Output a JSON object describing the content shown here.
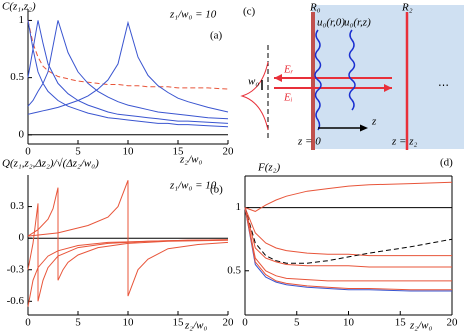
{
  "chart_data": [
    {
      "type": "line",
      "panel_label": "(a)",
      "ylabel": "C(z₁,z₂)",
      "xlabel": "z₂/w₀",
      "annotation": "z₁/w₀ = 10",
      "x": [
        0,
        0.5,
        1,
        1.5,
        2,
        3,
        4,
        5,
        6,
        7,
        8,
        9,
        10,
        11,
        12,
        13,
        14,
        15,
        16,
        18,
        20
      ],
      "series": [
        {
          "color": "#000000",
          "x": [
            0,
            20
          ],
          "values": [
            0,
            0
          ]
        },
        {
          "color": "#e8553a",
          "dash": true,
          "values": [
            1,
            0.8,
            0.68,
            0.6,
            0.56,
            0.51,
            0.49,
            0.47,
            0.46,
            0.45,
            0.44,
            0.44,
            0.43,
            0.43,
            0.42,
            0.42,
            0.42,
            0.41,
            0.41,
            0.41,
            0.4
          ]
        },
        {
          "color": "#3a55d0",
          "values": [
            1,
            0.75,
            0.55,
            0.45,
            0.38,
            0.3,
            0.25,
            0.22,
            0.19,
            0.17,
            0.15,
            0.14,
            0.13,
            0.12,
            0.11,
            0.1,
            0.1,
            0.09,
            0.09,
            0.08,
            0.07
          ]
        },
        {
          "color": "#3a55d0",
          "values": [
            0.5,
            0.75,
            1,
            0.8,
            0.62,
            0.45,
            0.36,
            0.3,
            0.26,
            0.23,
            0.2,
            0.18,
            0.17,
            0.16,
            0.15,
            0.14,
            0.13,
            0.12,
            0.12,
            0.11,
            0.1
          ]
        },
        {
          "color": "#3a55d0",
          "values": [
            0.25,
            0.3,
            0.38,
            0.45,
            0.55,
            1,
            0.72,
            0.55,
            0.45,
            0.38,
            0.33,
            0.29,
            0.26,
            0.24,
            0.22,
            0.2,
            0.19,
            0.18,
            0.17,
            0.15,
            0.14
          ]
        },
        {
          "color": "#3a55d0",
          "values": [
            0.18,
            0.19,
            0.2,
            0.21,
            0.22,
            0.24,
            0.27,
            0.3,
            0.34,
            0.4,
            0.48,
            0.62,
            0.98,
            0.68,
            0.52,
            0.43,
            0.37,
            0.32,
            0.29,
            0.24,
            0.2
          ]
        }
      ],
      "xlim": [
        0,
        20
      ],
      "ylim": [
        -0.08,
        1.1
      ],
      "xticks": [
        0,
        5,
        10,
        15,
        20
      ],
      "yticks": [
        0,
        0.5,
        1
      ]
    },
    {
      "type": "line",
      "panel_label": "(b)",
      "ylabel": "Q(z₁,z₂,Δz₂)/√(Δz₂/w₀)",
      "xlabel": "z₂/w₀",
      "annotation": "z₁/w₀ = 10",
      "series": [
        {
          "color": "#000000",
          "x": [
            0,
            20
          ],
          "values": [
            0,
            0
          ]
        },
        {
          "color": "#e8553a",
          "x": [
            0,
            0.5,
            1,
            2,
            3,
            5,
            8,
            12,
            16,
            20
          ],
          "values": [
            -0.65,
            -0.4,
            -0.28,
            -0.17,
            -0.12,
            -0.07,
            -0.04,
            -0.03,
            -0.02,
            -0.015
          ]
        },
        {
          "color": "#e8553a",
          "x": [
            0,
            0.5,
            1,
            1,
            1.5,
            2,
            3,
            5,
            8,
            12,
            16,
            20
          ],
          "values": [
            -0.3,
            -0.05,
            0.33,
            -0.6,
            -0.4,
            -0.28,
            -0.17,
            -0.09,
            -0.05,
            -0.03,
            -0.02,
            -0.015
          ]
        },
        {
          "color": "#e8553a",
          "x": [
            0,
            1,
            2,
            2.5,
            3,
            3,
            3.5,
            4,
            5,
            7,
            10,
            14,
            20
          ],
          "values": [
            0.02,
            0.08,
            0.18,
            0.28,
            0.48,
            -0.4,
            -0.3,
            -0.23,
            -0.16,
            -0.09,
            -0.05,
            -0.03,
            -0.02
          ]
        },
        {
          "color": "#e8553a",
          "x": [
            0,
            3,
            6,
            8,
            9,
            10,
            10,
            11,
            12,
            14,
            17,
            20
          ],
          "values": [
            0.02,
            0.05,
            0.12,
            0.2,
            0.3,
            0.55,
            -0.55,
            -0.3,
            -0.2,
            -0.1,
            -0.06,
            -0.04
          ]
        }
      ],
      "xlim": [
        0,
        20
      ],
      "ylim": [
        -0.73,
        0.6
      ],
      "xticks": [
        0,
        5,
        10,
        15,
        20
      ],
      "yticks": [
        -0.6,
        -0.3,
        0,
        0.3
      ]
    },
    {
      "type": "line",
      "panel_label": "(d)",
      "ylabel": "F(z₂)",
      "xlabel": "z₂/w₀",
      "x": [
        0,
        1,
        2,
        3,
        4,
        6,
        8,
        10,
        12,
        16,
        20
      ],
      "series": [
        {
          "color": "#000000",
          "values": [
            1,
            1,
            1,
            1,
            1,
            1,
            1,
            1,
            1,
            1,
            1
          ]
        },
        {
          "color": "#e8553a",
          "values": [
            1,
            0.97,
            1.02,
            1.06,
            1.09,
            1.13,
            1.15,
            1.17,
            1.18,
            1.19,
            1.2
          ]
        },
        {
          "color": "#e8553a",
          "values": [
            1,
            0.8,
            0.72,
            0.68,
            0.66,
            0.64,
            0.63,
            0.63,
            0.62,
            0.62,
            0.62
          ]
        },
        {
          "color": "#000000",
          "dash": true,
          "values": [
            1,
            0.72,
            0.62,
            0.58,
            0.56,
            0.56,
            0.58,
            0.61,
            0.64,
            0.69,
            0.75
          ]
        },
        {
          "color": "#e8553a",
          "values": [
            1,
            0.68,
            0.6,
            0.57,
            0.55,
            0.54,
            0.54,
            0.54,
            0.53,
            0.53,
            0.53
          ]
        },
        {
          "color": "#e8553a",
          "values": [
            1,
            0.6,
            0.5,
            0.46,
            0.44,
            0.43,
            0.42,
            0.42,
            0.42,
            0.42,
            0.42
          ]
        },
        {
          "color": "#3a55d0",
          "values": [
            1,
            0.55,
            0.45,
            0.41,
            0.39,
            0.37,
            0.36,
            0.35,
            0.35,
            0.34,
            0.34
          ]
        },
        {
          "color": "#e8553a",
          "values": [
            1,
            0.57,
            0.47,
            0.42,
            0.4,
            0.38,
            0.37,
            0.36,
            0.36,
            0.35,
            0.35
          ]
        }
      ],
      "xlim": [
        0,
        20
      ],
      "ylim": [
        0.15,
        1.25
      ],
      "xticks": [
        0,
        5,
        10,
        15,
        20
      ],
      "yticks": [
        0.5,
        1
      ]
    }
  ],
  "diagram": {
    "panel_label": "(c)",
    "mirror_left": "R₀",
    "mirror_right": "R₂",
    "mode_0": "u₀(r,0)",
    "mode_z": "u₀(r,z)",
    "waist": "w₀",
    "reflected": "Eᵣ",
    "incident": "Eᵢ",
    "axis": "z",
    "pos_left": "z = 0",
    "pos_right": "z = z₂",
    "more": "⋯"
  }
}
